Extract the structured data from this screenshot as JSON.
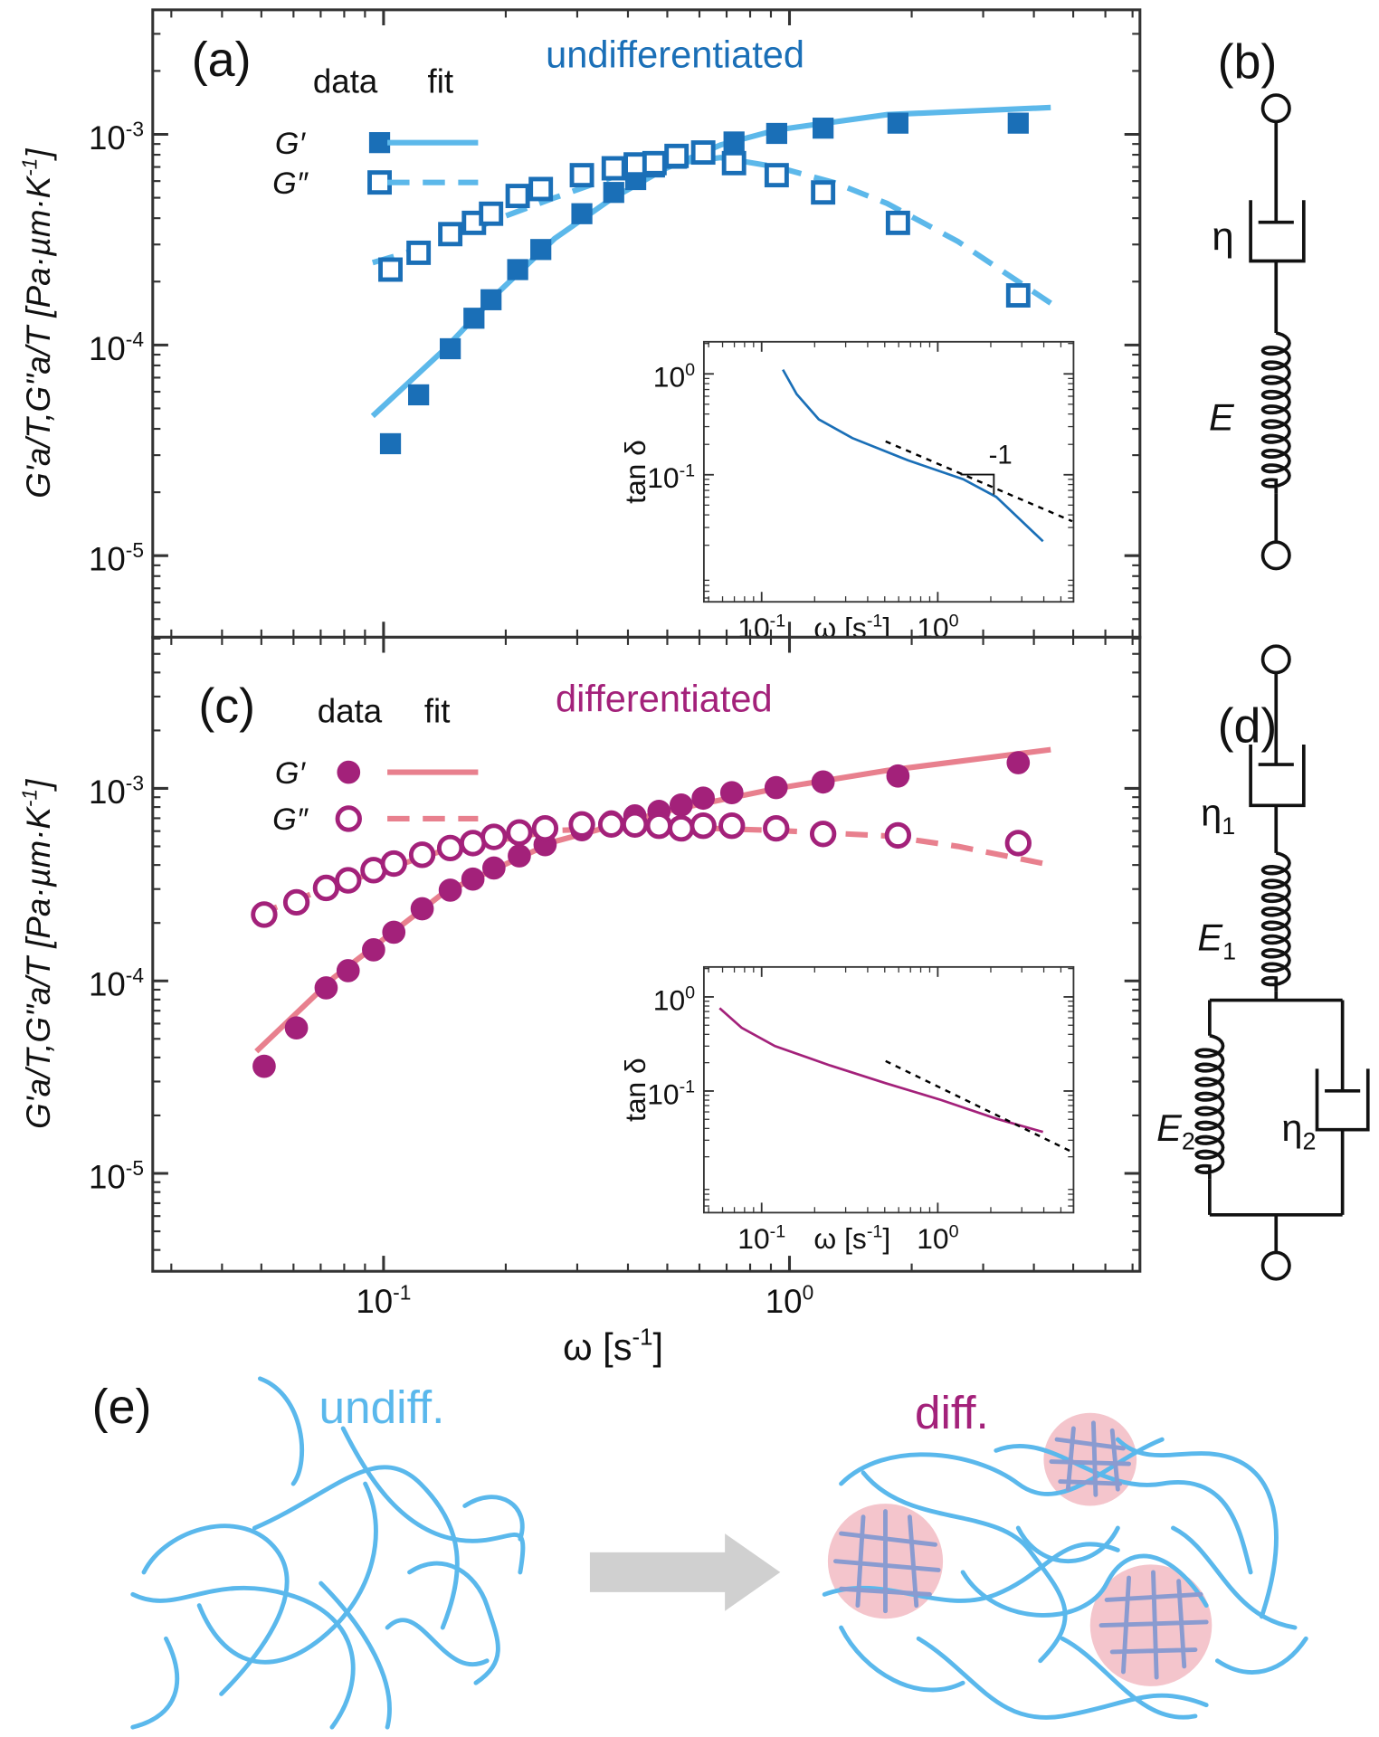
{
  "chart_data": [
    {
      "type": "scatter",
      "panel": "(a)",
      "annotation": "undifferentiated",
      "annotation_color": "#1a6fb7",
      "legend_headers": [
        "data",
        "fit"
      ],
      "log_x": true,
      "log_y": true,
      "xlim": [
        0.027,
        7.3
      ],
      "ylim": [
        4.1e-06,
        0.0039
      ],
      "xticks": [
        0.1,
        1
      ],
      "xtick_labels": false,
      "yticks": [
        {
          "value": 0.001,
          "label": "10",
          "exponent": "-3"
        },
        {
          "value": 0.0001,
          "label": "10",
          "exponent": "-4"
        },
        {
          "value": 1e-05,
          "label": "10",
          "exponent": "-5"
        }
      ],
      "ylabel": {
        "text": "G'a/T,G\"a/T [Pa·µm·K",
        "sup": "-1",
        "end": "]"
      },
      "series": [
        {
          "name": "G′",
          "color": "#1a6fb7",
          "fit_color": "#5cb8ea",
          "marker": "square",
          "filled": true,
          "fit_dashed": false,
          "x": [
            0.104,
            0.122,
            0.146,
            0.167,
            0.184,
            0.214,
            0.244,
            0.308,
            0.369,
            0.418,
            0.465,
            0.527,
            0.613,
            0.73,
            0.93,
            1.21,
            1.85,
            3.66
          ],
          "values": [
            3.4e-05,
            5.8e-05,
            9.6e-05,
            0.000134,
            0.000164,
            0.000228,
            0.000284,
            0.00042,
            0.00053,
            0.00061,
            0.0007,
            0.00077,
            0.00083,
            0.00092,
            0.00101,
            0.00107,
            0.00113,
            0.00113
          ],
          "fit_x": [
            0.094,
            0.141,
            0.193,
            0.264,
            0.362,
            0.496,
            0.676,
            0.93,
            1.74,
            4.4
          ],
          "fit_values": [
            4.6e-05,
            9.5e-05,
            0.00018,
            0.00032,
            0.00049,
            0.00069,
            0.00089,
            0.00105,
            0.00124,
            0.00134
          ]
        },
        {
          "name": "G″",
          "color": "#1a6fb7",
          "fit_color": "#5cb8ea",
          "marker": "square",
          "filled": false,
          "fit_dashed": true,
          "x": [
            0.104,
            0.122,
            0.146,
            0.167,
            0.184,
            0.214,
            0.244,
            0.308,
            0.369,
            0.418,
            0.465,
            0.527,
            0.613,
            0.73,
            0.93,
            1.21,
            1.85,
            3.66
          ],
          "values": [
            0.000228,
            0.000274,
            0.000336,
            0.00038,
            0.00042,
            0.00051,
            0.00055,
            0.00064,
            0.00069,
            0.00072,
            0.00073,
            0.00079,
            0.00082,
            0.00073,
            0.00064,
            0.00053,
            0.00038,
            0.000172
          ],
          "fit_x": [
            0.094,
            0.141,
            0.193,
            0.264,
            0.362,
            0.496,
            0.676,
            0.93,
            1.29,
            1.74,
            2.6,
            4.4
          ],
          "fit_values": [
            0.000246,
            0.00031,
            0.0004,
            0.0005,
            0.00062,
            0.00072,
            0.000775,
            0.0007,
            0.00059,
            0.00047,
            0.00031,
            0.000158
          ]
        }
      ]
    },
    {
      "type": "line",
      "log_x": true,
      "log_y": true,
      "xlim": [
        0.047,
        5.9
      ],
      "ylim": [
        0.0055,
        2.08
      ],
      "xticks": [
        {
          "value": 0.1,
          "label": "10",
          "exponent": "-1"
        },
        {
          "value": 1,
          "label": "10",
          "exponent": "0"
        }
      ],
      "xtick_labels": true,
      "yticks": [
        {
          "value": 1,
          "label": "10",
          "exponent": "0"
        },
        {
          "value": 0.1,
          "label": "10",
          "exponent": "-1"
        }
      ],
      "xlabel": {
        "text": "ω [s",
        "sup": "-1",
        "end": "]"
      },
      "ylabel": "tan δ",
      "annotation": "-1",
      "series": [
        {
          "color": "#1a6fb7",
          "dashed": false,
          "x": [
            0.132,
            0.158,
            0.211,
            0.327,
            0.676,
            1.395,
            2.15,
            3.96
          ],
          "values": [
            1.1,
            0.63,
            0.354,
            0.231,
            0.139,
            0.0904,
            0.0603,
            0.0219
          ]
        },
        {
          "color": "#000000",
          "dashed": true,
          "x": [
            0.506,
            5.8
          ],
          "values": [
            0.214,
            0.0346
          ]
        }
      ]
    },
    {
      "type": "scatter",
      "panel": "(c)",
      "annotation": "differentiated",
      "annotation_color": "#a3217a",
      "legend_headers": [
        "data",
        "fit"
      ],
      "log_x": true,
      "log_y": true,
      "xlim": [
        0.027,
        7.3
      ],
      "ylim": [
        3.1e-06,
        0.0061
      ],
      "xticks": [
        {
          "value": 0.1,
          "label": "10",
          "exponent": "-1"
        },
        {
          "value": 1,
          "label": "10",
          "exponent": "0"
        }
      ],
      "xtick_labels": true,
      "yticks": [
        {
          "value": 0.001,
          "label": "10",
          "exponent": "-3"
        },
        {
          "value": 0.0001,
          "label": "10",
          "exponent": "-4"
        },
        {
          "value": 1e-05,
          "label": "10",
          "exponent": "-5"
        }
      ],
      "xlabel": {
        "text": "ω [s",
        "sup": "-1",
        "end": "]"
      },
      "ylabel": {
        "text": "G'a/T,G\"a/T [Pa·µm·K",
        "sup": "-1",
        "end": "]"
      },
      "series": [
        {
          "name": "G′",
          "color": "#a3217a",
          "fit_color": "#e8808e",
          "marker": "circle",
          "filled": true,
          "fit_dashed": false,
          "x": [
            0.0508,
            0.061,
            0.0722,
            0.0818,
            0.0945,
            0.106,
            0.1245,
            0.146,
            0.166,
            0.187,
            0.216,
            0.25,
            0.308,
            0.364,
            0.416,
            0.477,
            0.541,
            0.613,
            0.721,
            0.927,
            1.21,
            1.85,
            3.66
          ],
          "values": [
            3.6e-05,
            5.7e-05,
            9.2e-05,
            0.000113,
            0.000145,
            0.000179,
            0.000237,
            0.000296,
            0.000338,
            0.000386,
            0.000446,
            0.00051,
            0.00061,
            0.00067,
            0.00072,
            0.00076,
            0.00082,
            0.00089,
            0.00095,
            0.00101,
            0.00108,
            0.00116,
            0.00136
          ],
          "fit_x": [
            0.0486,
            0.0754,
            0.141,
            0.264,
            0.496,
            0.93,
            1.74,
            4.4
          ],
          "fit_values": [
            4.3e-05,
            0.000104,
            0.000288,
            0.00053,
            0.00076,
            0.001,
            0.00124,
            0.00159
          ]
        },
        {
          "name": "G″",
          "color": "#a3217a",
          "fit_color": "#e8808e",
          "marker": "circle",
          "filled": false,
          "fit_dashed": true,
          "x": [
            0.0508,
            0.061,
            0.0722,
            0.0818,
            0.0945,
            0.106,
            0.1245,
            0.146,
            0.166,
            0.187,
            0.216,
            0.25,
            0.308,
            0.364,
            0.416,
            0.477,
            0.541,
            0.613,
            0.721,
            0.927,
            1.21,
            1.85,
            3.66
          ],
          "values": [
            0.000221,
            0.000256,
            0.000304,
            0.000333,
            0.000376,
            0.000407,
            0.000452,
            0.00049,
            0.00052,
            0.00056,
            0.00059,
            0.00062,
            0.00065,
            0.00065,
            0.00065,
            0.00064,
            0.00062,
            0.00064,
            0.00064,
            0.00062,
            0.00058,
            0.00057,
            0.00052
          ],
          "fit_x": [
            0.0486,
            0.0754,
            0.141,
            0.264,
            0.496,
            0.93,
            1.74,
            2.6,
            4.4
          ],
          "fit_values": [
            0.000221,
            0.000312,
            0.000477,
            0.000605,
            0.00063,
            0.000605,
            0.000566,
            0.0005,
            0.0004
          ]
        }
      ]
    },
    {
      "type": "line",
      "log_x": true,
      "log_y": true,
      "xlim": [
        0.047,
        5.9
      ],
      "ylim": [
        0.0051,
        2.08
      ],
      "xticks": [
        {
          "value": 0.1,
          "label": "10",
          "exponent": "-1"
        },
        {
          "value": 1,
          "label": "10",
          "exponent": "0"
        }
      ],
      "xtick_labels": true,
      "yticks": [
        {
          "value": 1,
          "label": "10",
          "exponent": "0"
        },
        {
          "value": 0.1,
          "label": "10",
          "exponent": "-1"
        }
      ],
      "xlabel": {
        "text": "ω [s",
        "sup": "-1",
        "end": "]"
      },
      "ylabel": "tan δ",
      "series": [
        {
          "color": "#a3217a",
          "dashed": false,
          "x": [
            0.0577,
            0.077,
            0.119,
            0.245,
            0.506,
            1.04,
            2.15,
            3.96
          ],
          "values": [
            0.76,
            0.47,
            0.3,
            0.187,
            0.121,
            0.0805,
            0.0508,
            0.0367
          ]
        },
        {
          "color": "#000000",
          "dashed": true,
          "x": [
            0.506,
            5.8
          ],
          "values": [
            0.208,
            0.0225
          ]
        }
      ]
    }
  ],
  "circuits": {
    "b": {
      "panel": "(b)",
      "dashpot": "η",
      "spring": "E"
    },
    "d": {
      "panel": "(d)",
      "dashpot_1": {
        "symbol": "η",
        "sub": "1"
      },
      "spring_1": {
        "symbol": "E",
        "sub": "1"
      },
      "spring_2": {
        "symbol": "E",
        "sub": "2"
      },
      "dashpot_2": {
        "symbol": "η",
        "sub": "2"
      }
    }
  },
  "illustration": {
    "panel": "(e)",
    "left_label": "undiff.",
    "right_label": "diff."
  }
}
